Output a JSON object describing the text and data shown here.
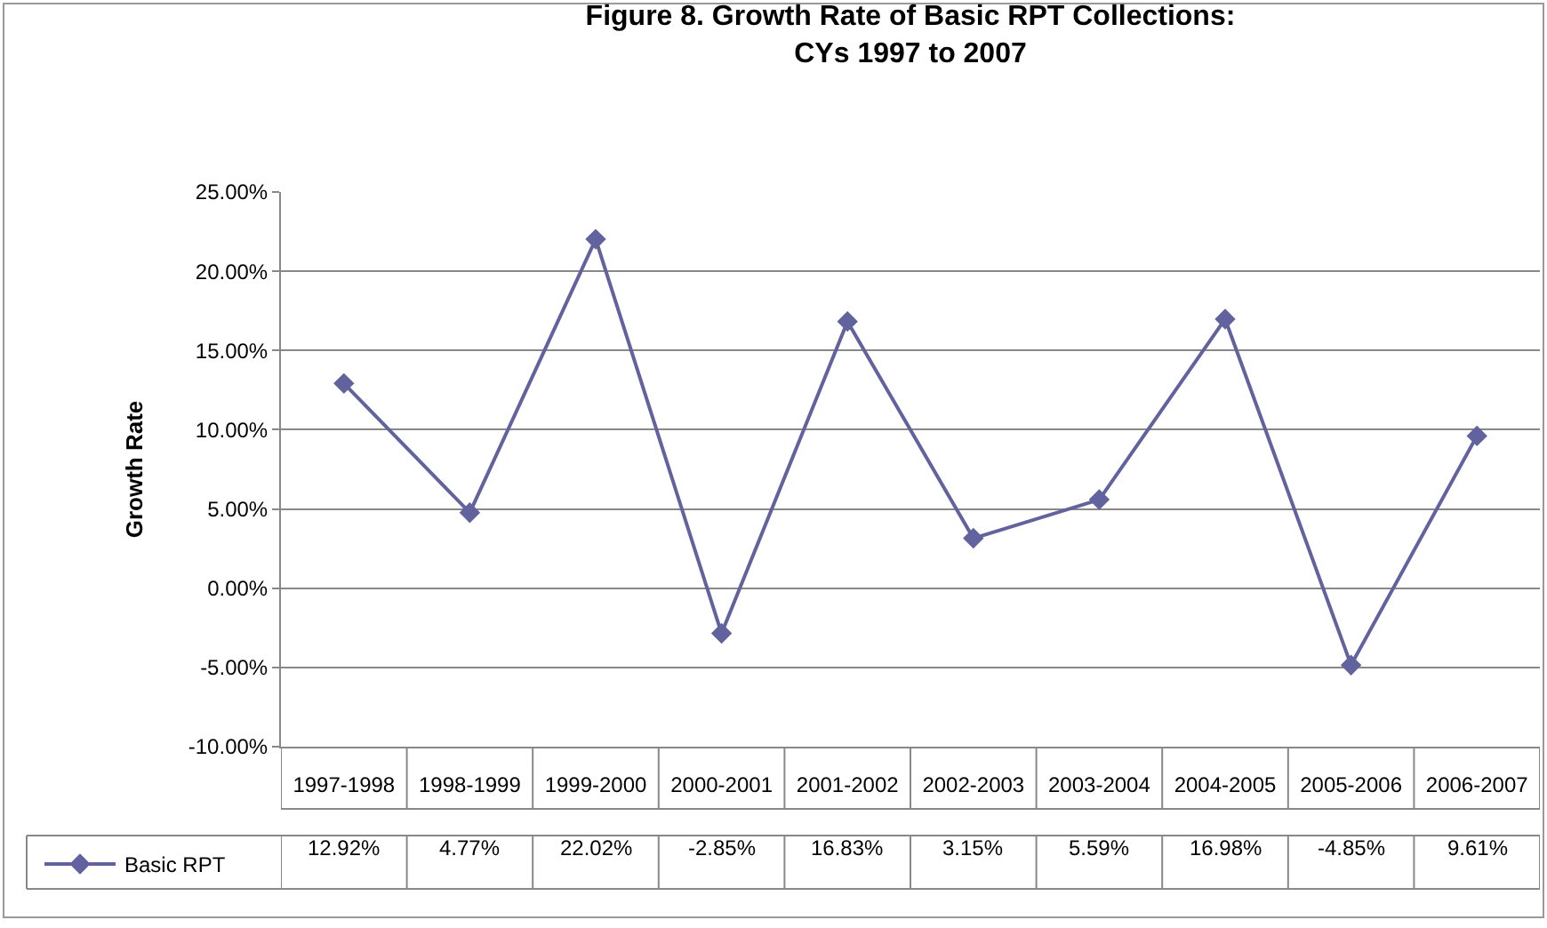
{
  "chart_data": {
    "type": "line",
    "title": "Figure 8. Growth Rate of Basic RPT Collections:\nCYs 1997 to 2007",
    "ylabel": "Growth Rate",
    "categories": [
      "1997-1998",
      "1998-1999",
      "1999-2000",
      "2000-2001",
      "2001-2002",
      "2002-2003",
      "2003-2004",
      "2004-2005",
      "2005-2006",
      "2006-2007"
    ],
    "series": [
      {
        "name": "Basic RPT",
        "color": "#62629e",
        "values": [
          12.92,
          4.77,
          22.02,
          -2.85,
          16.83,
          3.15,
          5.59,
          16.98,
          -4.85,
          9.61
        ],
        "value_labels": [
          "12.92%",
          "4.77%",
          "22.02%",
          "-2.85%",
          "16.83%",
          "3.15%",
          "5.59%",
          "16.98%",
          "-4.85%",
          "9.61%"
        ]
      }
    ],
    "ylim": [
      -10,
      25
    ],
    "yticks": [
      {
        "value": -10,
        "label": "-10.00%"
      },
      {
        "value": -5,
        "label": "-5.00%"
      },
      {
        "value": 0,
        "label": "0.00%"
      },
      {
        "value": 5,
        "label": "5.00%"
      },
      {
        "value": 10,
        "label": "10.00%"
      },
      {
        "value": 15,
        "label": "15.00%"
      },
      {
        "value": 20,
        "label": "20.00%"
      },
      {
        "value": 25,
        "label": "25.00%"
      }
    ],
    "grid": "y",
    "legend": "bottom left",
    "marker": "diamond",
    "line_style": "solid"
  }
}
